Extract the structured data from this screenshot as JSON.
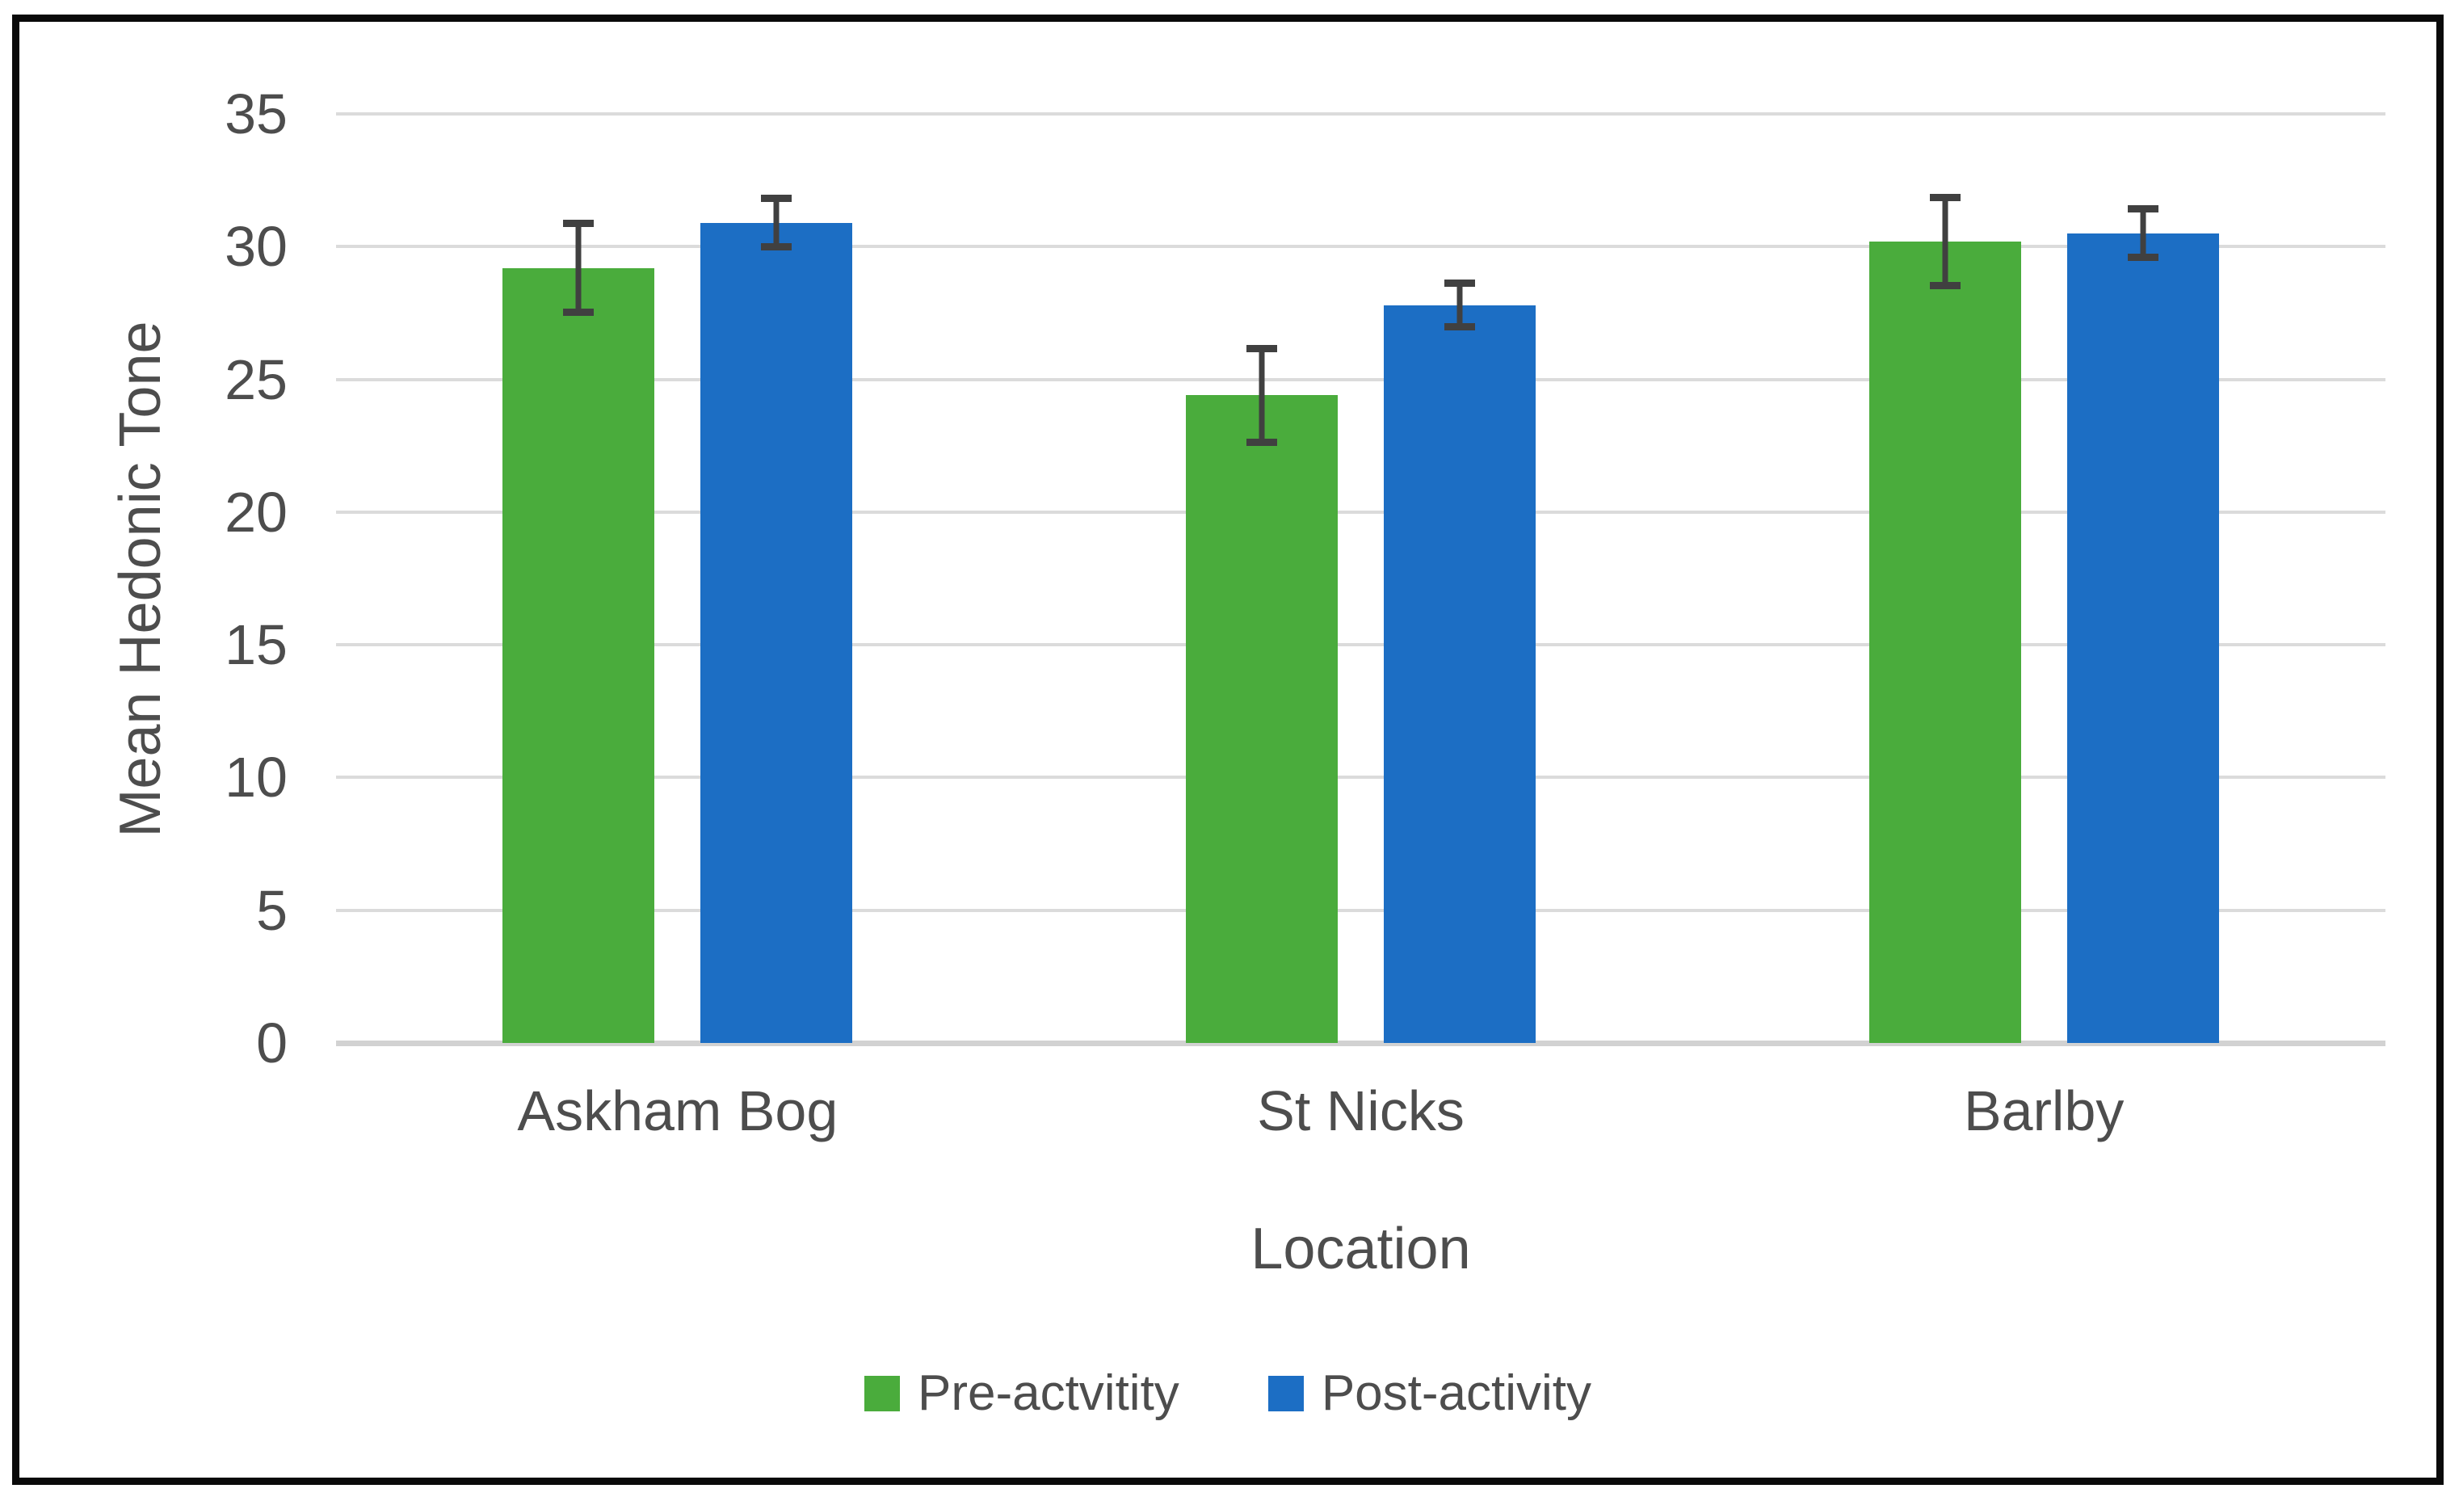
{
  "chart_data": {
    "type": "bar",
    "title": "",
    "xlabel": "Location",
    "ylabel": "Mean Hedonic Tone",
    "categories": [
      "Askham Bog",
      "St Nicks",
      "Barlby"
    ],
    "series": [
      {
        "name": "Pre-actvitity",
        "color": "#4aac3c",
        "values": [
          29.2,
          24.4,
          30.2
        ],
        "errors": [
          1.8,
          1.9,
          1.8
        ]
      },
      {
        "name": "Post-activity",
        "color": "#1c6ec4",
        "values": [
          30.9,
          27.8,
          30.5
        ],
        "errors": [
          1.05,
          0.95,
          1.05
        ]
      }
    ],
    "ylim": [
      0,
      35
    ],
    "yticks": [
      0,
      5,
      10,
      15,
      20,
      25,
      30,
      35
    ],
    "grid": "horizontal",
    "legend_position": "bottom",
    "grid_color": "#dbdbdb",
    "axis_line_color": "#d2d2d2",
    "error_bar_color": "#404040",
    "text_color": "#4d4d4d",
    "frame_border_color": "#0a0a0a"
  }
}
